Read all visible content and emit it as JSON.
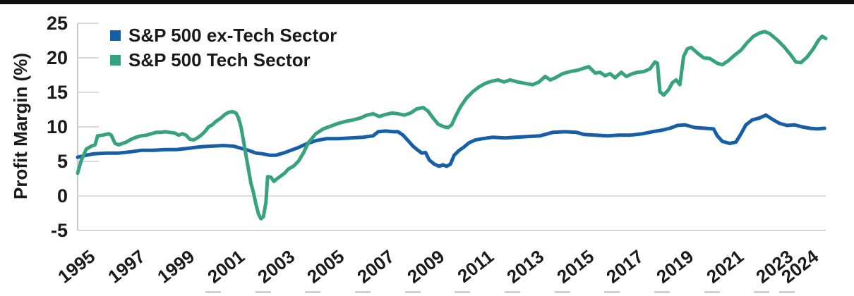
{
  "header": {
    "top_bar_color": "#101010"
  },
  "chart_data": {
    "type": "line",
    "title": "",
    "ylabel": "Profit Margin (%)",
    "xlabel": "",
    "ylim": [
      -5,
      25
    ],
    "x_domain": [
      1994.75,
      2024.75
    ],
    "yticks": [
      25,
      20,
      15,
      10,
      5,
      0,
      -5
    ],
    "xticks": [
      1995,
      1997,
      1999,
      2001,
      2003,
      2005,
      2007,
      2009,
      2011,
      2013,
      2015,
      2017,
      2019,
      2021,
      2023,
      2024
    ],
    "grid": "short y-tick stubs at left axis; full horizontal lines at 0 and -5 only",
    "legend_position": "top-left inside plot",
    "series": [
      {
        "name": "S&P 500 ex-Tech Sector",
        "color": "#165fa8",
        "points": [
          [
            1994.75,
            5.6
          ],
          [
            1995.1,
            5.9
          ],
          [
            1995.4,
            6.1
          ],
          [
            1995.9,
            6.2
          ],
          [
            1996.4,
            6.2
          ],
          [
            1996.9,
            6.4
          ],
          [
            1997.3,
            6.6
          ],
          [
            1997.8,
            6.6
          ],
          [
            1998.25,
            6.7
          ],
          [
            1998.7,
            6.7
          ],
          [
            1999.2,
            6.9
          ],
          [
            1999.65,
            7.1
          ],
          [
            2000.1,
            7.2
          ],
          [
            2000.6,
            7.3
          ],
          [
            2001.0,
            7.2
          ],
          [
            2001.3,
            6.9
          ],
          [
            2001.6,
            6.6
          ],
          [
            2001.9,
            6.2
          ],
          [
            2002.15,
            6.1
          ],
          [
            2002.45,
            5.9
          ],
          [
            2002.7,
            5.9
          ],
          [
            2003.0,
            6.2
          ],
          [
            2003.3,
            6.6
          ],
          [
            2003.6,
            7.0
          ],
          [
            2003.9,
            7.5
          ],
          [
            2004.3,
            8.0
          ],
          [
            2004.75,
            8.3
          ],
          [
            2005.2,
            8.3
          ],
          [
            2005.7,
            8.4
          ],
          [
            2006.2,
            8.5
          ],
          [
            2006.6,
            8.7
          ],
          [
            2006.8,
            9.3
          ],
          [
            2007.1,
            9.4
          ],
          [
            2007.4,
            9.3
          ],
          [
            2007.6,
            9.3
          ],
          [
            2007.8,
            8.8
          ],
          [
            2008.0,
            8.0
          ],
          [
            2008.2,
            7.2
          ],
          [
            2008.4,
            6.6
          ],
          [
            2008.55,
            6.2
          ],
          [
            2008.7,
            6.3
          ],
          [
            2008.85,
            5.2
          ],
          [
            2009.05,
            4.6
          ],
          [
            2009.25,
            4.3
          ],
          [
            2009.4,
            4.5
          ],
          [
            2009.55,
            4.3
          ],
          [
            2009.7,
            4.6
          ],
          [
            2009.85,
            5.9
          ],
          [
            2010.05,
            6.6
          ],
          [
            2010.25,
            7.1
          ],
          [
            2010.45,
            7.7
          ],
          [
            2010.7,
            8.1
          ],
          [
            2011.0,
            8.3
          ],
          [
            2011.4,
            8.5
          ],
          [
            2011.9,
            8.4
          ],
          [
            2012.3,
            8.5
          ],
          [
            2012.8,
            8.6
          ],
          [
            2013.3,
            8.7
          ],
          [
            2013.8,
            9.2
          ],
          [
            2014.3,
            9.3
          ],
          [
            2014.75,
            9.2
          ],
          [
            2015.05,
            8.9
          ],
          [
            2015.5,
            8.8
          ],
          [
            2016.0,
            8.7
          ],
          [
            2016.45,
            8.8
          ],
          [
            2016.9,
            8.8
          ],
          [
            2017.4,
            9.0
          ],
          [
            2017.8,
            9.3
          ],
          [
            2018.15,
            9.5
          ],
          [
            2018.5,
            9.8
          ],
          [
            2018.8,
            10.2
          ],
          [
            2019.1,
            10.3
          ],
          [
            2019.5,
            9.9
          ],
          [
            2019.9,
            9.8
          ],
          [
            2020.25,
            9.7
          ],
          [
            2020.4,
            8.7
          ],
          [
            2020.6,
            7.9
          ],
          [
            2020.9,
            7.6
          ],
          [
            2021.15,
            7.8
          ],
          [
            2021.35,
            9.0
          ],
          [
            2021.55,
            10.3
          ],
          [
            2021.8,
            11.0
          ],
          [
            2022.1,
            11.3
          ],
          [
            2022.35,
            11.7
          ],
          [
            2022.65,
            11.0
          ],
          [
            2022.9,
            10.5
          ],
          [
            2023.2,
            10.2
          ],
          [
            2023.5,
            10.3
          ],
          [
            2023.8,
            10.0
          ],
          [
            2024.1,
            9.8
          ],
          [
            2024.4,
            9.7
          ],
          [
            2024.7,
            9.8
          ]
        ]
      },
      {
        "name": "S&P 500 Tech Sector",
        "color": "#36a37e",
        "points": [
          [
            1994.75,
            3.3
          ],
          [
            1994.9,
            5.2
          ],
          [
            1995.1,
            6.8
          ],
          [
            1995.3,
            7.2
          ],
          [
            1995.45,
            7.4
          ],
          [
            1995.55,
            8.7
          ],
          [
            1995.75,
            8.8
          ],
          [
            1996.0,
            9.0
          ],
          [
            1996.1,
            8.8
          ],
          [
            1996.25,
            7.6
          ],
          [
            1996.4,
            7.4
          ],
          [
            1996.55,
            7.6
          ],
          [
            1996.7,
            7.8
          ],
          [
            1996.9,
            8.2
          ],
          [
            1997.1,
            8.5
          ],
          [
            1997.3,
            8.7
          ],
          [
            1997.5,
            8.8
          ],
          [
            1997.7,
            9.0
          ],
          [
            1997.9,
            9.2
          ],
          [
            1998.1,
            9.2
          ],
          [
            1998.25,
            9.3
          ],
          [
            1998.45,
            9.2
          ],
          [
            1998.65,
            9.1
          ],
          [
            1998.8,
            8.8
          ],
          [
            1998.95,
            9.0
          ],
          [
            1999.1,
            8.8
          ],
          [
            1999.25,
            8.2
          ],
          [
            1999.4,
            8.1
          ],
          [
            1999.55,
            8.4
          ],
          [
            1999.7,
            8.8
          ],
          [
            1999.85,
            9.3
          ],
          [
            2000.0,
            10.0
          ],
          [
            2000.15,
            10.3
          ],
          [
            2000.3,
            10.8
          ],
          [
            2000.5,
            11.3
          ],
          [
            2000.65,
            11.8
          ],
          [
            2000.8,
            12.1
          ],
          [
            2000.95,
            12.2
          ],
          [
            2001.1,
            12.0
          ],
          [
            2001.2,
            11.3
          ],
          [
            2001.3,
            10.0
          ],
          [
            2001.4,
            8.0
          ],
          [
            2001.5,
            5.9
          ],
          [
            2001.6,
            3.9
          ],
          [
            2001.7,
            1.8
          ],
          [
            2001.8,
            0.5
          ],
          [
            2001.9,
            -1.2
          ],
          [
            2002.0,
            -2.6
          ],
          [
            2002.1,
            -3.3
          ],
          [
            2002.2,
            -3.0
          ],
          [
            2002.3,
            -0.9
          ],
          [
            2002.37,
            2.8
          ],
          [
            2002.5,
            2.7
          ],
          [
            2002.62,
            2.1
          ],
          [
            2002.75,
            2.5
          ],
          [
            2002.9,
            2.9
          ],
          [
            2003.05,
            3.3
          ],
          [
            2003.2,
            3.9
          ],
          [
            2003.4,
            4.3
          ],
          [
            2003.6,
            5.0
          ],
          [
            2003.8,
            6.2
          ],
          [
            2004.0,
            7.7
          ],
          [
            2004.3,
            9.0
          ],
          [
            2004.6,
            9.7
          ],
          [
            2004.9,
            10.1
          ],
          [
            2005.2,
            10.5
          ],
          [
            2005.5,
            10.8
          ],
          [
            2005.8,
            11.0
          ],
          [
            2006.1,
            11.3
          ],
          [
            2006.35,
            11.7
          ],
          [
            2006.6,
            11.9
          ],
          [
            2006.85,
            11.5
          ],
          [
            2007.1,
            11.8
          ],
          [
            2007.35,
            12.0
          ],
          [
            2007.6,
            11.9
          ],
          [
            2007.85,
            11.7
          ],
          [
            2008.1,
            12.0
          ],
          [
            2008.35,
            12.6
          ],
          [
            2008.6,
            12.8
          ],
          [
            2008.8,
            12.3
          ],
          [
            2009.0,
            11.3
          ],
          [
            2009.2,
            10.4
          ],
          [
            2009.45,
            10.0
          ],
          [
            2009.6,
            9.9
          ],
          [
            2009.75,
            10.3
          ],
          [
            2009.9,
            11.5
          ],
          [
            2010.1,
            12.9
          ],
          [
            2010.35,
            14.2
          ],
          [
            2010.6,
            15.1
          ],
          [
            2010.85,
            15.8
          ],
          [
            2011.1,
            16.3
          ],
          [
            2011.35,
            16.6
          ],
          [
            2011.6,
            16.8
          ],
          [
            2011.85,
            16.5
          ],
          [
            2012.1,
            16.8
          ],
          [
            2012.4,
            16.5
          ],
          [
            2012.7,
            16.3
          ],
          [
            2013.0,
            16.1
          ],
          [
            2013.25,
            16.5
          ],
          [
            2013.5,
            17.3
          ],
          [
            2013.7,
            16.8
          ],
          [
            2013.9,
            17.1
          ],
          [
            2014.2,
            17.7
          ],
          [
            2014.5,
            18.0
          ],
          [
            2014.8,
            18.2
          ],
          [
            2015.05,
            18.5
          ],
          [
            2015.25,
            18.7
          ],
          [
            2015.5,
            17.8
          ],
          [
            2015.7,
            17.9
          ],
          [
            2015.9,
            17.4
          ],
          [
            2016.1,
            17.7
          ],
          [
            2016.3,
            17.1
          ],
          [
            2016.55,
            17.9
          ],
          [
            2016.75,
            17.3
          ],
          [
            2017.0,
            17.7
          ],
          [
            2017.2,
            17.9
          ],
          [
            2017.45,
            18.0
          ],
          [
            2017.7,
            18.4
          ],
          [
            2017.9,
            19.4
          ],
          [
            2018.0,
            19.2
          ],
          [
            2018.1,
            15.1
          ],
          [
            2018.25,
            14.6
          ],
          [
            2018.45,
            15.4
          ],
          [
            2018.6,
            16.4
          ],
          [
            2018.75,
            16.8
          ],
          [
            2018.9,
            16.1
          ],
          [
            2019.05,
            20.2
          ],
          [
            2019.2,
            21.3
          ],
          [
            2019.35,
            21.5
          ],
          [
            2019.6,
            20.7
          ],
          [
            2019.85,
            20.0
          ],
          [
            2020.1,
            19.9
          ],
          [
            2020.4,
            19.2
          ],
          [
            2020.6,
            19.0
          ],
          [
            2020.85,
            19.6
          ],
          [
            2021.1,
            20.4
          ],
          [
            2021.35,
            21.1
          ],
          [
            2021.6,
            22.2
          ],
          [
            2021.85,
            23.1
          ],
          [
            2022.1,
            23.6
          ],
          [
            2022.3,
            23.8
          ],
          [
            2022.5,
            23.5
          ],
          [
            2022.8,
            22.6
          ],
          [
            2023.1,
            21.5
          ],
          [
            2023.35,
            20.4
          ],
          [
            2023.55,
            19.4
          ],
          [
            2023.75,
            19.3
          ],
          [
            2024.0,
            20.1
          ],
          [
            2024.25,
            21.3
          ],
          [
            2024.45,
            22.5
          ],
          [
            2024.6,
            23.1
          ],
          [
            2024.75,
            22.8
          ]
        ]
      }
    ]
  }
}
